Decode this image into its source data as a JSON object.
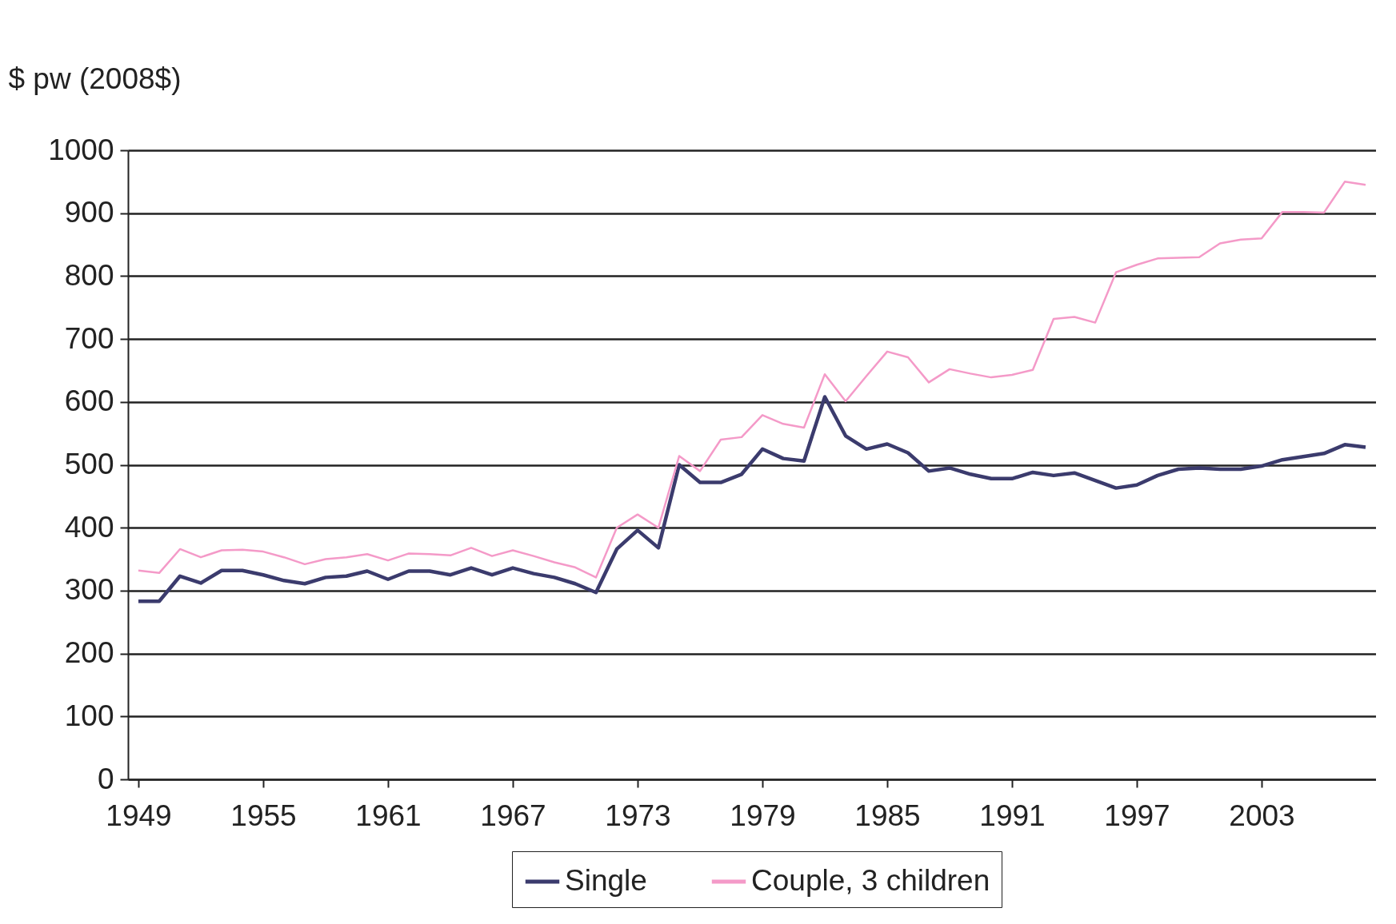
{
  "chart_data": {
    "type": "line",
    "ylabel": "$ pw (2008$)",
    "categories": [
      "1949",
      null,
      null,
      null,
      null,
      null,
      "1955",
      null,
      null,
      null,
      null,
      null,
      "1961",
      null,
      null,
      null,
      null,
      null,
      "1967",
      null,
      null,
      null,
      null,
      null,
      "1973",
      null,
      null,
      null,
      null,
      null,
      "1979",
      null,
      null,
      null,
      null,
      null,
      "1985",
      null,
      null,
      null,
      null,
      null,
      "1991",
      null,
      null,
      null,
      null,
      null,
      "1997",
      null,
      null,
      null,
      null,
      null,
      "2003",
      null,
      null,
      null,
      null,
      null
    ],
    "series": [
      {
        "name": "Single",
        "color": "#3b3b6d",
        "values": [
          283,
          283,
          323,
          312,
          332,
          332,
          325,
          316,
          311,
          321,
          323,
          331,
          318,
          331,
          331,
          325,
          336,
          325,
          336,
          327,
          321,
          311,
          297,
          366,
          396,
          368,
          500,
          472,
          472,
          485,
          525,
          510,
          506,
          608,
          546,
          525,
          533,
          519,
          490,
          495,
          485,
          478,
          478,
          488,
          483,
          487,
          475,
          463,
          468,
          483,
          493,
          495,
          493,
          493,
          498,
          508,
          513,
          518,
          532,
          528
        ]
      },
      {
        "name": "Couple, 3 children",
        "color": "#f49ac8",
        "values": [
          332,
          328,
          366,
          353,
          364,
          365,
          362,
          353,
          342,
          350,
          353,
          358,
          348,
          359,
          358,
          356,
          368,
          355,
          364,
          355,
          345,
          337,
          321,
          400,
          421,
          400,
          514,
          490,
          540,
          544,
          579,
          565,
          559,
          644,
          601,
          641,
          680,
          671,
          631,
          652,
          645,
          639,
          643,
          651,
          732,
          735,
          726,
          806,
          818,
          828,
          829,
          830,
          852,
          858,
          860,
          902,
          902,
          901,
          950,
          945
        ]
      }
    ],
    "ylim": [
      0,
      1000
    ],
    "yticks": [
      0,
      100,
      200,
      300,
      400,
      500,
      600,
      700,
      800,
      900,
      {
        "value": 1000,
        "label": "1000"
      }
    ],
    "grid": "y",
    "legend": "bottom"
  }
}
